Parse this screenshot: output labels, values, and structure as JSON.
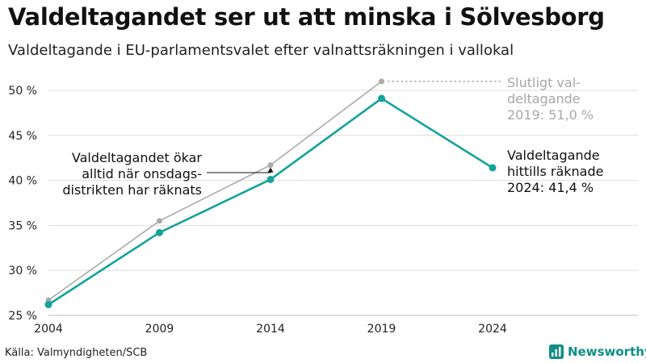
{
  "header": {
    "title": "Valdeltagandet ser ut att minska i Sölvesborg",
    "subtitle": "Valdeltagande i EU-parlamentsvalet efter valnattsräkningen i vallokal"
  },
  "chart_data": {
    "type": "line",
    "x": [
      2004,
      2009,
      2014,
      2019,
      2024
    ],
    "xticks": [
      "2004",
      "2009",
      "2014",
      "2019",
      "2024"
    ],
    "yticks": [
      "25 %",
      "30 %",
      "35 %",
      "40 %",
      "45 %",
      "50 %"
    ],
    "ylim": [
      25,
      52
    ],
    "grid": true,
    "series": [
      {
        "key": "final",
        "color": "#aaaaaa",
        "values": [
          26.7,
          35.5,
          41.7,
          51.0,
          null
        ]
      },
      {
        "key": "counted",
        "color": "#14a39a",
        "values": [
          26.2,
          34.2,
          40.1,
          49.1,
          41.4
        ]
      }
    ],
    "annotations": {
      "final_label": [
        "Slutligt val-",
        "deltagande",
        "2019: 51,0 %"
      ],
      "counted_label": [
        "Valdeltagande",
        "hittills räknade",
        "2024: 41,4 %"
      ],
      "note": [
        "Valdeltagandet ökar",
        "alltid när onsdags-",
        "distrikten har räknats"
      ]
    }
  },
  "footer": {
    "source": "Källa: Valmyndigheten/SCB",
    "brand": "Newsworthy"
  },
  "colors": {
    "accent": "#14a39a",
    "muted": "#aaaaaa",
    "grid": "#dddddd"
  }
}
